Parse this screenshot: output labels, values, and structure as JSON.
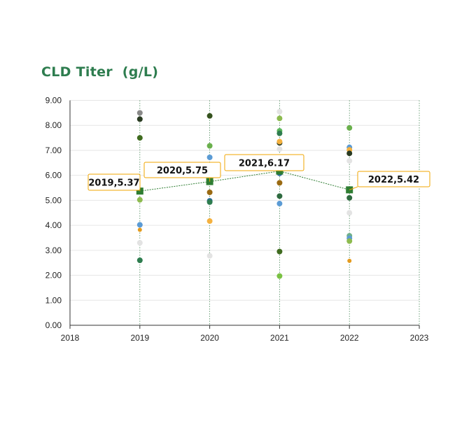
{
  "chart_data": {
    "type": "scatter",
    "title": "CLD Titer  (g/L)",
    "xlim": [
      2018,
      2023
    ],
    "ylim": [
      0,
      9
    ],
    "x_ticks": [
      "2018",
      "2019",
      "2020",
      "2021",
      "2022",
      "2023"
    ],
    "y_ticks": [
      "0.00",
      "1.00",
      "2.00",
      "3.00",
      "4.00",
      "5.00",
      "6.00",
      "7.00",
      "8.00",
      "9.00"
    ],
    "grid": true,
    "colors": {
      "average_marker": "#2e7d32",
      "average_line": "#2e7d32",
      "callout_border": "#f0a500",
      "drop_line": "#4a8a5a"
    },
    "points": [
      {
        "x": 2019,
        "y": 8.5,
        "color": "#8a8a8a",
        "size": 4
      },
      {
        "x": 2019,
        "y": 8.25,
        "color": "#2a3b22",
        "size": 4
      },
      {
        "x": 2019,
        "y": 7.5,
        "color": "#3f6b1f",
        "size": 4
      },
      {
        "x": 2019,
        "y": 5.02,
        "color": "#8dbb4f",
        "size": 4
      },
      {
        "x": 2019,
        "y": 4.02,
        "color": "#5b9bd5",
        "size": 4
      },
      {
        "x": 2019,
        "y": 3.82,
        "color": "#e59b1d",
        "size": 3
      },
      {
        "x": 2019,
        "y": 3.3,
        "color": "#e3e3e3",
        "size": 4
      },
      {
        "x": 2019,
        "y": 2.6,
        "color": "#2e7d4f",
        "size": 4
      },
      {
        "x": 2020,
        "y": 8.38,
        "color": "#35521e",
        "size": 4
      },
      {
        "x": 2020,
        "y": 7.18,
        "color": "#6ab04c",
        "size": 4
      },
      {
        "x": 2020,
        "y": 6.72,
        "color": "#5b9bd5",
        "size": 4
      },
      {
        "x": 2020,
        "y": 5.32,
        "color": "#9a6a12",
        "size": 4
      },
      {
        "x": 2020,
        "y": 4.98,
        "color": "#2a6aa0",
        "size": 4
      },
      {
        "x": 2020,
        "y": 4.93,
        "color": "#2e7d4f",
        "size": 4
      },
      {
        "x": 2020,
        "y": 4.17,
        "color": "#f4b13f",
        "size": 4
      },
      {
        "x": 2020,
        "y": 2.78,
        "color": "#e3e3e3",
        "size": 4
      },
      {
        "x": 2021,
        "y": 8.55,
        "color": "#e3e3e3",
        "size": 4
      },
      {
        "x": 2021,
        "y": 8.28,
        "color": "#8dbb4f",
        "size": 4
      },
      {
        "x": 2021,
        "y": 7.78,
        "color": "#5cb85c",
        "size": 4
      },
      {
        "x": 2021,
        "y": 7.68,
        "color": "#2e7d4f",
        "size": 4
      },
      {
        "x": 2021,
        "y": 7.3,
        "color": "#2a3b22",
        "size": 4
      },
      {
        "x": 2021,
        "y": 7.35,
        "color": "#f4b13f",
        "size": 4
      },
      {
        "x": 2021,
        "y": 7.05,
        "color": "#e3e3e3",
        "size": 4
      },
      {
        "x": 2021,
        "y": 6.08,
        "color": "#2a6aa0",
        "size": 4
      },
      {
        "x": 2021,
        "y": 5.7,
        "color": "#9a6a12",
        "size": 4
      },
      {
        "x": 2021,
        "y": 5.17,
        "color": "#2e6a3f",
        "size": 4
      },
      {
        "x": 2021,
        "y": 4.87,
        "color": "#5b9bd5",
        "size": 4
      },
      {
        "x": 2021,
        "y": 2.95,
        "color": "#3f6b1f",
        "size": 4
      },
      {
        "x": 2021,
        "y": 1.97,
        "color": "#7ac143",
        "size": 4
      },
      {
        "x": 2022,
        "y": 7.9,
        "color": "#6ab04c",
        "size": 4
      },
      {
        "x": 2022,
        "y": 7.12,
        "color": "#5b9bd5",
        "size": 4
      },
      {
        "x": 2022,
        "y": 7.02,
        "color": "#f4b13f",
        "size": 4
      },
      {
        "x": 2022,
        "y": 6.88,
        "color": "#2a3b22",
        "size": 4
      },
      {
        "x": 2022,
        "y": 6.58,
        "color": "#e3e3e3",
        "size": 4
      },
      {
        "x": 2022,
        "y": 5.1,
        "color": "#2e6a3f",
        "size": 4
      },
      {
        "x": 2022,
        "y": 4.5,
        "color": "#e3e3e3",
        "size": 4
      },
      {
        "x": 2022,
        "y": 3.58,
        "color": "#6fb08a",
        "size": 4
      },
      {
        "x": 2022,
        "y": 3.48,
        "color": "#5b9bd5",
        "size": 4
      },
      {
        "x": 2022,
        "y": 3.37,
        "color": "#8dbb4f",
        "size": 4
      },
      {
        "x": 2022,
        "y": 2.58,
        "color": "#e59b1d",
        "size": 3
      }
    ],
    "averages": [
      {
        "x": 2019,
        "y": 5.37,
        "label": "2019,5.37"
      },
      {
        "x": 2020,
        "y": 5.75,
        "label": "2020,5.75"
      },
      {
        "x": 2021,
        "y": 6.17,
        "label": "2021,6.17"
      },
      {
        "x": 2022,
        "y": 5.42,
        "label": "2022,5.42"
      }
    ]
  }
}
